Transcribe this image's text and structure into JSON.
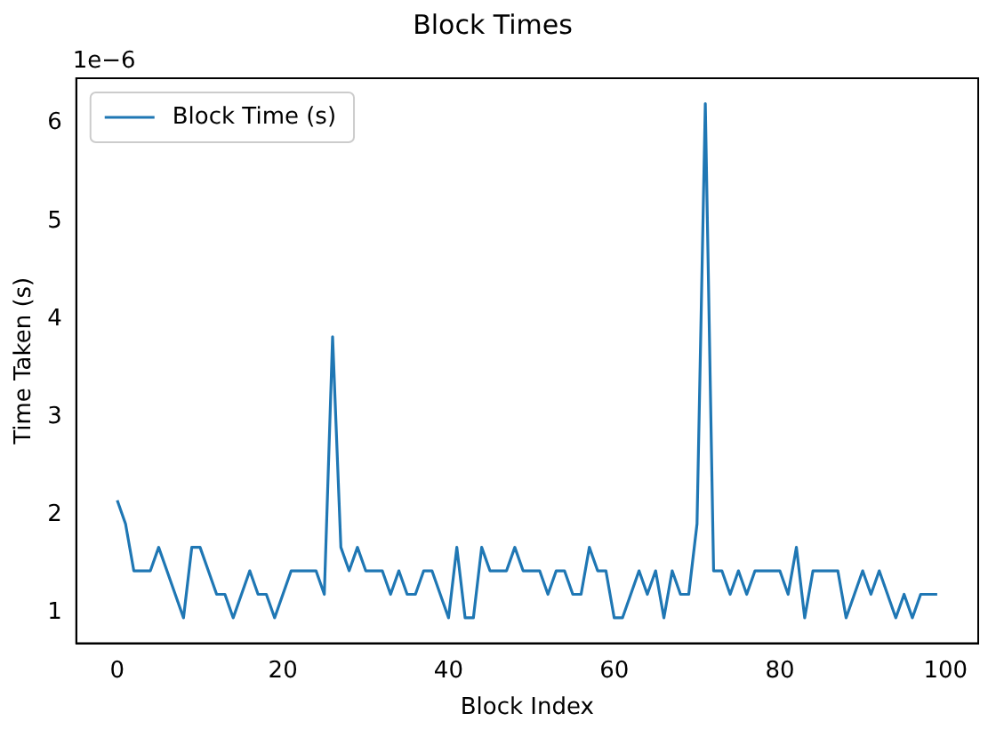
{
  "chart_data": {
    "type": "line",
    "title": "Block Times",
    "xlabel": "Block Index",
    "ylabel": "Time Taken (s)",
    "annotations": [
      "1e−6"
    ],
    "x": [
      0,
      1,
      2,
      3,
      4,
      5,
      6,
      7,
      8,
      9,
      10,
      11,
      12,
      13,
      14,
      15,
      16,
      17,
      18,
      19,
      20,
      21,
      22,
      23,
      24,
      25,
      26,
      27,
      28,
      29,
      30,
      31,
      32,
      33,
      34,
      35,
      36,
      37,
      38,
      39,
      40,
      41,
      42,
      43,
      44,
      45,
      46,
      47,
      48,
      49,
      50,
      51,
      52,
      53,
      54,
      55,
      56,
      57,
      58,
      59,
      60,
      61,
      62,
      63,
      64,
      65,
      66,
      67,
      68,
      69,
      70,
      71,
      72,
      73,
      74,
      75,
      76,
      77,
      78,
      79,
      80,
      81,
      82,
      83,
      84,
      85,
      86,
      87,
      88,
      89,
      90,
      91,
      92,
      93,
      94,
      95,
      96,
      97,
      98,
      99
    ],
    "series": [
      {
        "name": "Block Time (s)",
        "color": "#1f77b4",
        "values": [
          2.15,
          1.91,
          1.43,
          1.43,
          1.43,
          1.67,
          1.43,
          1.19,
          0.95,
          1.67,
          1.67,
          1.43,
          1.19,
          1.19,
          0.95,
          1.19,
          1.43,
          1.19,
          1.19,
          0.95,
          1.19,
          1.43,
          1.43,
          1.43,
          1.43,
          1.19,
          3.82,
          1.67,
          1.43,
          1.67,
          1.43,
          1.43,
          1.43,
          1.19,
          1.43,
          1.19,
          1.19,
          1.43,
          1.43,
          1.19,
          0.95,
          1.67,
          0.95,
          0.95,
          1.67,
          1.43,
          1.43,
          1.43,
          1.67,
          1.43,
          1.43,
          1.43,
          1.19,
          1.43,
          1.43,
          1.19,
          1.19,
          1.67,
          1.43,
          1.43,
          0.95,
          0.95,
          1.19,
          1.43,
          1.19,
          1.43,
          0.95,
          1.43,
          1.19,
          1.19,
          1.91,
          6.2,
          1.43,
          1.43,
          1.19,
          1.43,
          1.19,
          1.43,
          1.43,
          1.43,
          1.43,
          1.19,
          1.67,
          0.95,
          1.43,
          1.43,
          1.43,
          1.43,
          0.95,
          1.19,
          1.43,
          1.19,
          1.43,
          1.19,
          0.95,
          1.19,
          0.95,
          1.19,
          1.19,
          1.19
        ]
      }
    ],
    "xlim": [
      -4.95,
      103.95
    ],
    "xticks": [
      0,
      20,
      40,
      60,
      80,
      100
    ],
    "ylim": [
      0.69,
      6.46
    ],
    "yticks": [
      1,
      2,
      3,
      4,
      5,
      6
    ],
    "grid": false,
    "legend": "top left",
    "marker": "none",
    "line_style": "solid"
  }
}
